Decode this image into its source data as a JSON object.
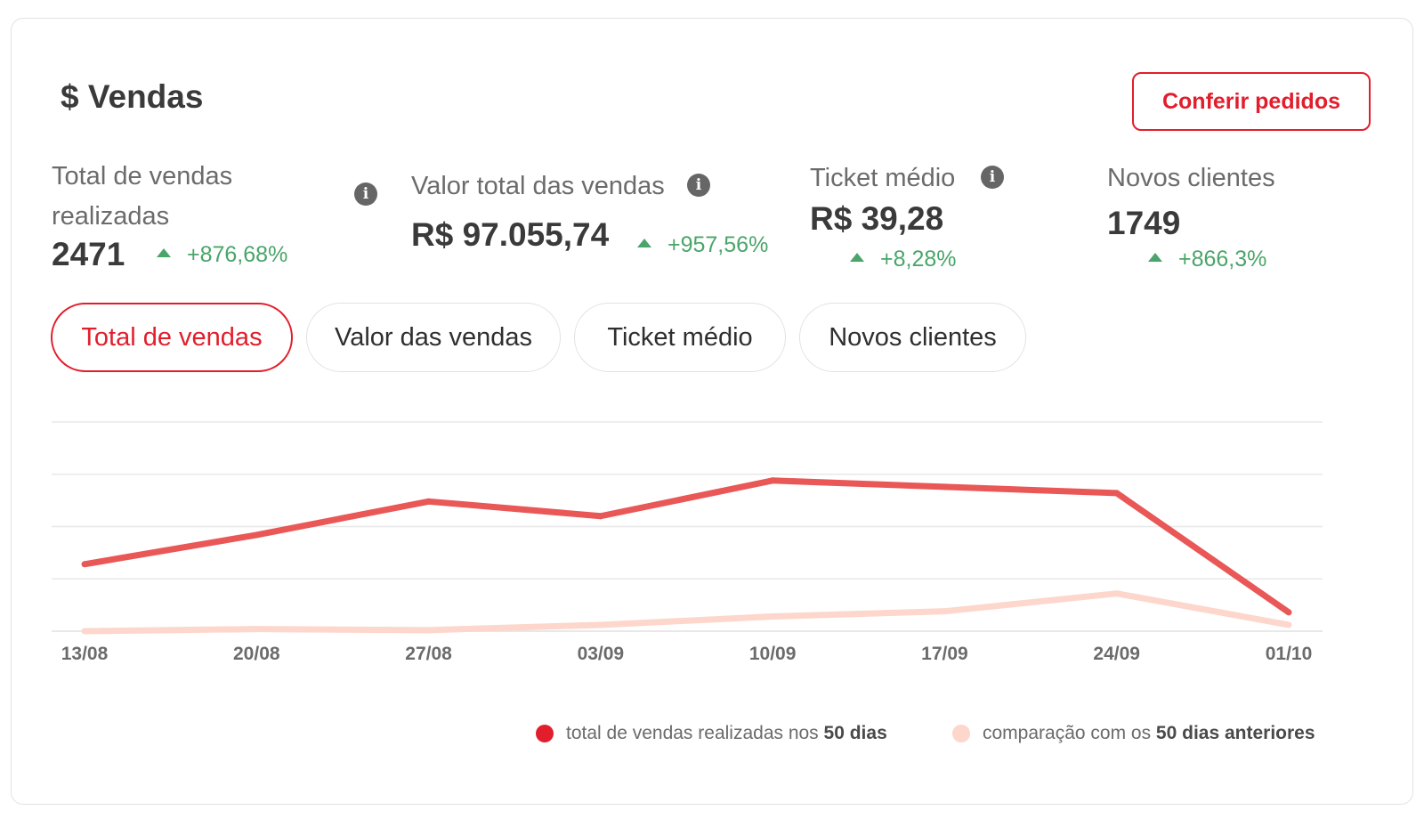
{
  "header": {
    "title": "$ Vendas",
    "cta_label": "Conferir pedidos"
  },
  "metrics": [
    {
      "label_line1": "Total de vendas",
      "label_line2": "realizadas",
      "value": "2471",
      "delta": "+876,68%",
      "has_info": true
    },
    {
      "label": "Valor total das vendas",
      "value": "R$ 97.055,74",
      "delta": "+957,56%",
      "has_info": true
    },
    {
      "label": "Ticket médio",
      "value": "R$ 39,28",
      "delta": "+8,28%",
      "has_info": true
    },
    {
      "label": "Novos clientes",
      "value": "1749",
      "delta": "+866,3%",
      "has_info": false
    }
  ],
  "tabs": [
    {
      "label": "Total de vendas",
      "active": true
    },
    {
      "label": "Valor das vendas",
      "active": false
    },
    {
      "label": "Ticket médio",
      "active": false
    },
    {
      "label": "Novos clientes",
      "active": false
    }
  ],
  "colors": {
    "accent": "#e21e2c",
    "series_current": "#e95757",
    "series_previous": "#fdd6cc",
    "positive": "#4aa56a",
    "grid": "#e8e8e8"
  },
  "icons": {
    "info": "info-icon",
    "trend_up": "triangle-up-icon"
  },
  "chart_data": {
    "type": "line",
    "title": "",
    "xlabel": "",
    "ylabel": "",
    "categories": [
      "13/08",
      "20/08",
      "27/08",
      "03/09",
      "10/09",
      "17/09",
      "24/09",
      "01/10"
    ],
    "ylim": [
      0,
      100
    ],
    "grid": true,
    "y_tick_labels_shown": false,
    "legend_position": "bottom-right",
    "series": [
      {
        "name_prefix": "total de vendas realizadas nos ",
        "name_bold": "50 dias",
        "values": [
          32,
          46,
          62,
          55,
          72,
          69,
          66,
          9
        ]
      },
      {
        "name_prefix": "comparação com os ",
        "name_bold": "50 dias anteriores",
        "values": [
          0,
          1,
          0.5,
          3,
          7,
          9.5,
          18,
          3
        ]
      }
    ]
  }
}
